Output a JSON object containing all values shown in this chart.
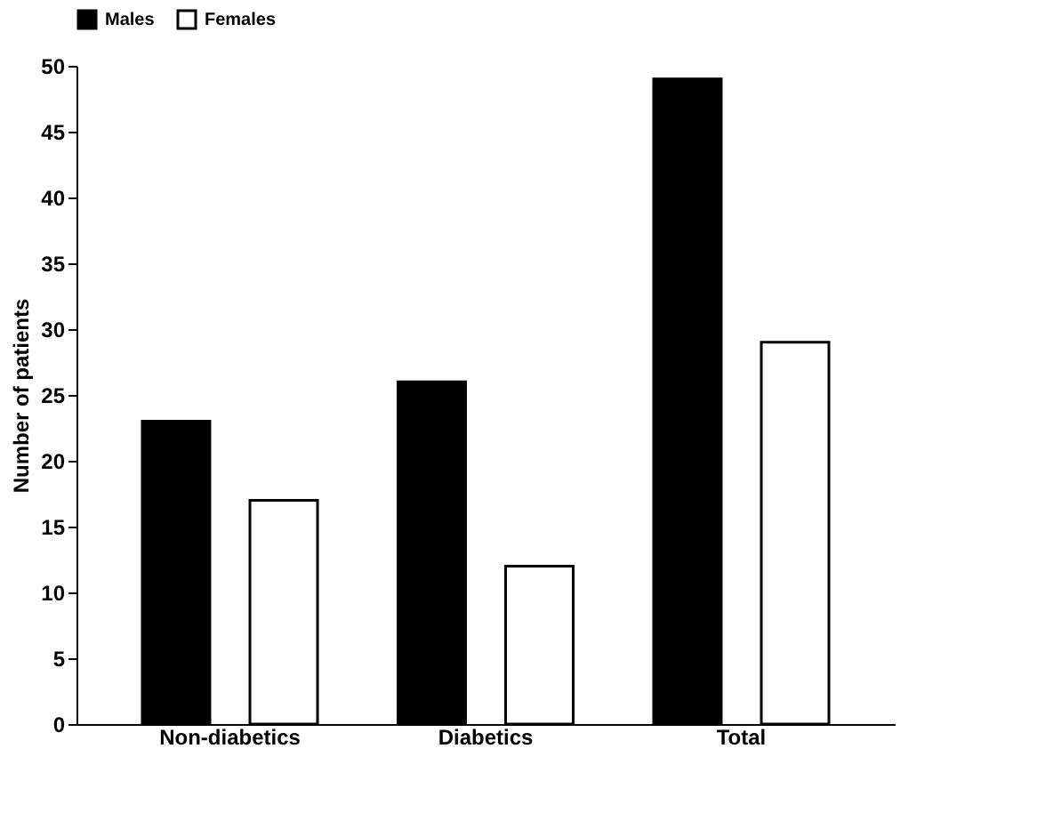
{
  "chart_data": {
    "type": "bar",
    "ylabel": "Number of patients",
    "categories": [
      "Non-diabetics",
      "Diabetics",
      "Total"
    ],
    "series": [
      {
        "name": "Males",
        "color": "#000000",
        "values": [
          23,
          26,
          49
        ]
      },
      {
        "name": "Females",
        "color": "#ffffff",
        "values": [
          17,
          12,
          29
        ]
      }
    ],
    "ylim": [
      0,
      50
    ],
    "yticks": [
      0,
      5,
      10,
      15,
      20,
      25,
      30,
      35,
      40,
      45,
      50
    ],
    "grid": false,
    "legend": "top"
  }
}
